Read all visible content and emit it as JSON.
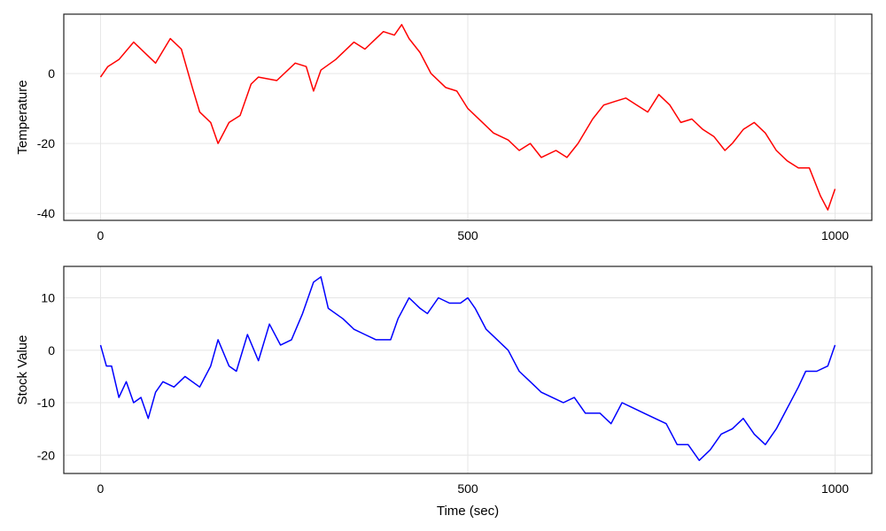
{
  "chart_data": [
    {
      "type": "line",
      "ylabel": "Temperature",
      "xlabel": "",
      "xlim": [
        -50,
        1050
      ],
      "ylim": [
        -42,
        17
      ],
      "xticks": [
        0,
        500,
        1000
      ],
      "yticks": [
        -40,
        -20,
        0
      ],
      "grid": true,
      "series": [
        {
          "color": "#ff0000",
          "x": [
            0,
            10,
            25,
            45,
            60,
            75,
            95,
            110,
            125,
            135,
            150,
            160,
            175,
            190,
            205,
            215,
            240,
            265,
            280,
            290,
            300,
            320,
            345,
            360,
            375,
            385,
            400,
            410,
            420,
            435,
            450,
            470,
            485,
            500,
            520,
            535,
            555,
            570,
            585,
            600,
            620,
            635,
            650,
            670,
            685,
            700,
            715,
            730,
            745,
            760,
            775,
            790,
            805,
            820,
            835,
            850,
            860,
            875,
            890,
            905,
            920,
            935,
            950,
            965,
            980,
            990,
            1000
          ],
          "y": [
            -1,
            2,
            4,
            9,
            6,
            3,
            10,
            7,
            -4,
            -11,
            -14,
            -20,
            -14,
            -12,
            -3,
            -1,
            -2,
            3,
            2,
            -5,
            1,
            4,
            9,
            7,
            10,
            12,
            11,
            14,
            10,
            6,
            0,
            -4,
            -5,
            -10,
            -14,
            -17,
            -19,
            -22,
            -20,
            -24,
            -22,
            -24,
            -20,
            -13,
            -9,
            -8,
            -7,
            -9,
            -11,
            -6,
            -9,
            -14,
            -13,
            -16,
            -18,
            -22,
            -20,
            -16,
            -14,
            -17,
            -22,
            -25,
            -27,
            -27,
            -35,
            -39,
            -33
          ]
        }
      ]
    },
    {
      "type": "line",
      "ylabel": "Stock Value",
      "xlabel": "Time (sec)",
      "xlim": [
        -50,
        1050
      ],
      "ylim": [
        -23.5,
        16
      ],
      "xticks": [
        0,
        500,
        1000
      ],
      "yticks": [
        -20,
        -10,
        0,
        10
      ],
      "grid": true,
      "series": [
        {
          "color": "#0000ff",
          "x": [
            0,
            8,
            15,
            25,
            35,
            45,
            55,
            65,
            75,
            85,
            100,
            115,
            135,
            150,
            160,
            175,
            185,
            200,
            215,
            230,
            245,
            260,
            275,
            290,
            300,
            310,
            320,
            330,
            345,
            360,
            375,
            395,
            405,
            420,
            435,
            445,
            460,
            475,
            490,
            500,
            510,
            525,
            540,
            555,
            570,
            585,
            600,
            615,
            630,
            645,
            660,
            680,
            695,
            710,
            725,
            740,
            755,
            770,
            785,
            800,
            815,
            830,
            845,
            860,
            875,
            890,
            905,
            920,
            935,
            950,
            960,
            975,
            990,
            1000
          ],
          "y": [
            1,
            -3,
            -3,
            -9,
            -6,
            -10,
            -9,
            -13,
            -8,
            -6,
            -7,
            -5,
            -7,
            -3,
            2,
            -3,
            -4,
            3,
            -2,
            5,
            1,
            2,
            7,
            13,
            14,
            8,
            7,
            6,
            4,
            3,
            2,
            2,
            6,
            10,
            8,
            7,
            10,
            9,
            9,
            10,
            8,
            4,
            2,
            0,
            -4,
            -6,
            -8,
            -9,
            -10,
            -9,
            -12,
            -12,
            -14,
            -10,
            -11,
            -12,
            -13,
            -14,
            -18,
            -18,
            -21,
            -19,
            -16,
            -15,
            -13,
            -16,
            -18,
            -15,
            -11,
            -7,
            -4,
            -4,
            -3,
            1
          ]
        }
      ]
    }
  ]
}
